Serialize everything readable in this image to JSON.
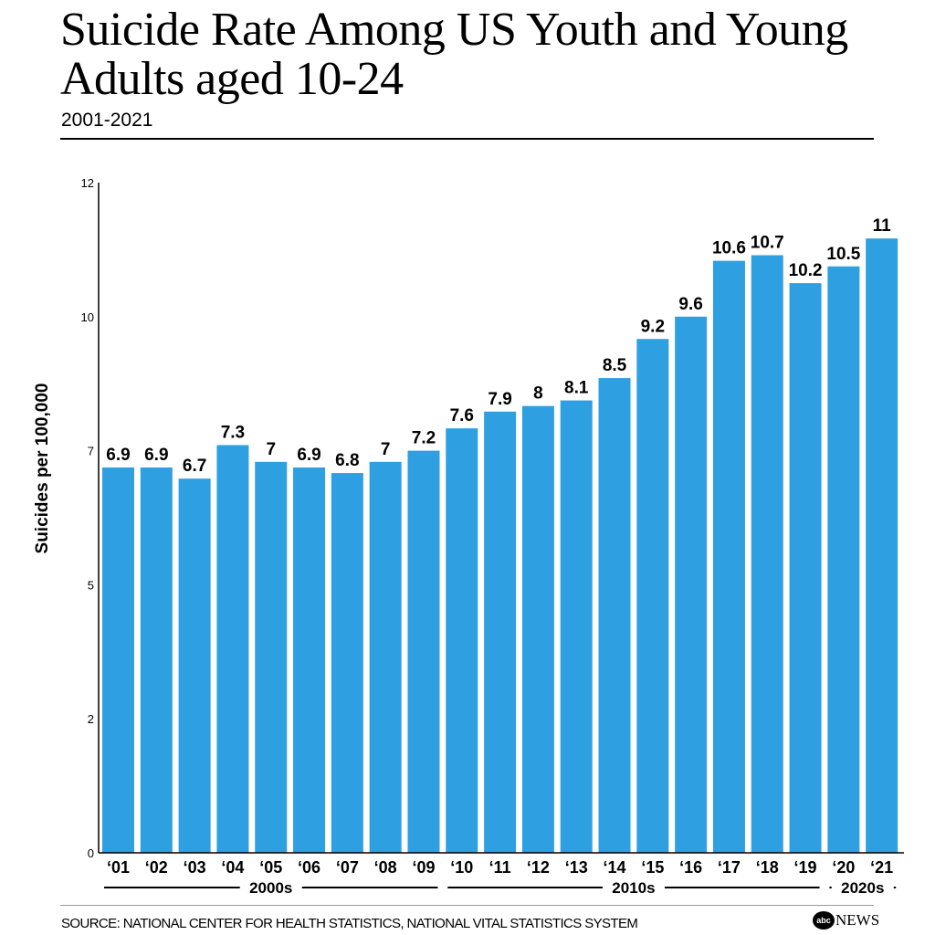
{
  "title": "Suicide Rate Among US Youth and Young Adults aged 10-24",
  "subtitle": "2001-2021",
  "source": "SOURCE: NATIONAL CENTER FOR HEALTH STATISTICS, NATIONAL VITAL STATISTICS SYSTEM",
  "logo": {
    "abc": "abc",
    "news": "NEWS"
  },
  "chart_data": {
    "type": "bar",
    "categories": [
      "‘01",
      "‘02",
      "‘03",
      "‘04",
      "‘05",
      "‘06",
      "‘07",
      "‘08",
      "‘09",
      "‘10",
      "‘11",
      "‘12",
      "‘13",
      "‘14",
      "‘15",
      "‘16",
      "‘17",
      "‘18",
      "‘19",
      "‘20",
      "‘21"
    ],
    "values": [
      6.9,
      6.9,
      6.7,
      7.3,
      7,
      6.9,
      6.8,
      7,
      7.2,
      7.6,
      7.9,
      8,
      8.1,
      8.5,
      9.2,
      9.6,
      10.6,
      10.7,
      10.2,
      10.5,
      11
    ],
    "data_labels": [
      "6.9",
      "6.9",
      "6.7",
      "7.3",
      "7",
      "6.9",
      "6.8",
      "7",
      "7.2",
      "7.6",
      "7.9",
      "8",
      "8.1",
      "8.5",
      "9.2",
      "9.6",
      "10.6",
      "10.7",
      "10.2",
      "10.5",
      "11"
    ],
    "ylabel": "Suicides per 100,000",
    "ylim": [
      0,
      12
    ],
    "yticks": [
      0,
      2.4,
      4.8,
      7.2,
      9.6,
      12
    ],
    "ytick_labels": [
      "0",
      "2",
      "5",
      "7",
      "10",
      "12"
    ],
    "groups": [
      {
        "label": "2000s",
        "from": 0,
        "to": 8
      },
      {
        "label": "2010s",
        "from": 9,
        "to": 18
      },
      {
        "label": "2020s",
        "from": 19,
        "to": 20
      }
    ],
    "grid": false,
    "bar_color": "#2E9FE0"
  }
}
